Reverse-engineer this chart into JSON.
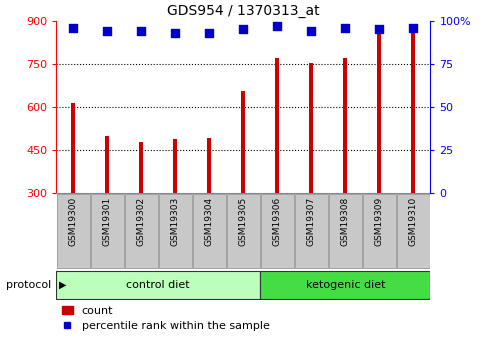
{
  "title": "GDS954 / 1370313_at",
  "samples": [
    "GSM19300",
    "GSM19301",
    "GSM19302",
    "GSM19303",
    "GSM19304",
    "GSM19305",
    "GSM19306",
    "GSM19307",
    "GSM19308",
    "GSM19309",
    "GSM19310"
  ],
  "counts": [
    615,
    500,
    478,
    490,
    493,
    655,
    770,
    752,
    772,
    858,
    856
  ],
  "percentile_ranks": [
    96,
    94,
    94,
    93,
    93,
    95,
    97,
    94,
    96,
    95,
    96
  ],
  "bar_color": "#cc0000",
  "dot_color": "#0000cc",
  "ylim_left": [
    300,
    900
  ],
  "ylim_right": [
    0,
    100
  ],
  "yticks_left": [
    300,
    450,
    600,
    750,
    900
  ],
  "yticks_right": [
    0,
    25,
    50,
    75,
    100
  ],
  "ytick_labels_right": [
    "0",
    "25",
    "50",
    "75",
    "100%"
  ],
  "n_control": 6,
  "n_keto": 5,
  "control_label": "control diet",
  "ketogenic_label": "ketogenic diet",
  "protocol_label": "protocol",
  "legend_count": "count",
  "legend_percentile": "percentile rank within the sample",
  "chart_bg": "#ffffff",
  "xtick_box_color": "#c8c8c8",
  "xtick_box_edge": "#888888",
  "control_diet_color": "#bbffbb",
  "ketogenic_diet_color": "#44dd44",
  "proto_edge_color": "#333333",
  "bar_bottom": 300,
  "bar_width": 0.12,
  "dot_size": 36,
  "grid_yticks": [
    450,
    600,
    750
  ]
}
